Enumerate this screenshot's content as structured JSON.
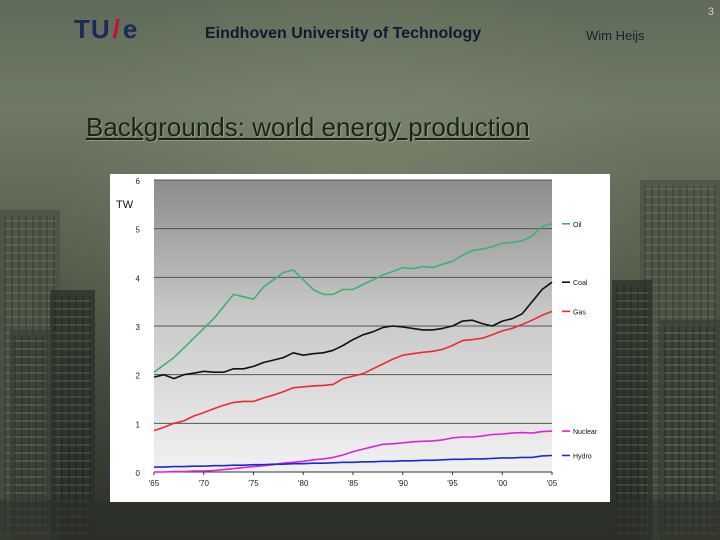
{
  "header": {
    "logo_tu": "TU",
    "logo_slash": "/",
    "logo_e": "e",
    "university": "Eindhoven University of Technology",
    "author": "Wim Heijs",
    "page_number": "3"
  },
  "slide": {
    "title": "Backgrounds: world energy production"
  },
  "colors": {
    "oil": "#3cb371",
    "coal": "#111111",
    "gas": "#ee2b2b",
    "nuclear": "#e020e0",
    "hydro": "#1a2bd6"
  },
  "chart_data": {
    "type": "line",
    "title": "",
    "ylabel": "TW",
    "xlabel": "",
    "ylim": [
      0,
      6
    ],
    "xlim": [
      1965,
      2005
    ],
    "y_ticks": [
      0,
      1,
      2,
      3,
      4,
      5,
      6
    ],
    "y_tick_labels": [
      "0",
      "1",
      "2",
      "3",
      "4",
      "5",
      "6"
    ],
    "x_ticks": [
      1965,
      1970,
      1975,
      1980,
      1985,
      1990,
      1995,
      2000,
      2005
    ],
    "x_tick_labels": [
      "'65",
      "'70",
      "'75",
      "'80",
      "'85",
      "'90",
      "'95",
      "'00",
      "'05"
    ],
    "x": [
      1965,
      1966,
      1967,
      1968,
      1969,
      1970,
      1971,
      1972,
      1973,
      1974,
      1975,
      1976,
      1977,
      1978,
      1979,
      1980,
      1981,
      1982,
      1983,
      1984,
      1985,
      1986,
      1987,
      1988,
      1989,
      1990,
      1991,
      1992,
      1993,
      1994,
      1995,
      1996,
      1997,
      1998,
      1999,
      2000,
      2001,
      2002,
      2003,
      2004,
      2005
    ],
    "series": [
      {
        "name": "Oil",
        "key": "oil",
        "values": [
          2.05,
          2.2,
          2.35,
          2.55,
          2.75,
          2.95,
          3.15,
          3.4,
          3.65,
          3.6,
          3.55,
          3.8,
          3.95,
          4.1,
          4.15,
          3.95,
          3.75,
          3.65,
          3.65,
          3.75,
          3.75,
          3.85,
          3.95,
          4.05,
          4.12,
          4.2,
          4.18,
          4.22,
          4.2,
          4.27,
          4.33,
          4.45,
          4.55,
          4.58,
          4.63,
          4.7,
          4.72,
          4.75,
          4.85,
          5.05,
          5.1
        ]
      },
      {
        "name": "Coal",
        "key": "coal",
        "values": [
          1.95,
          2.0,
          1.92,
          2.0,
          2.03,
          2.07,
          2.05,
          2.05,
          2.12,
          2.12,
          2.17,
          2.25,
          2.3,
          2.35,
          2.45,
          2.4,
          2.43,
          2.45,
          2.5,
          2.6,
          2.72,
          2.82,
          2.88,
          2.97,
          3.0,
          2.98,
          2.95,
          2.92,
          2.92,
          2.95,
          3.0,
          3.1,
          3.12,
          3.05,
          3.0,
          3.1,
          3.15,
          3.25,
          3.5,
          3.75,
          3.9
        ]
      },
      {
        "name": "Gas",
        "key": "gas",
        "values": [
          0.85,
          0.92,
          1.0,
          1.05,
          1.15,
          1.22,
          1.3,
          1.37,
          1.43,
          1.45,
          1.45,
          1.52,
          1.58,
          1.65,
          1.73,
          1.75,
          1.77,
          1.78,
          1.8,
          1.92,
          1.97,
          2.02,
          2.12,
          2.22,
          2.32,
          2.4,
          2.43,
          2.46,
          2.48,
          2.52,
          2.6,
          2.7,
          2.72,
          2.75,
          2.82,
          2.9,
          2.95,
          3.03,
          3.12,
          3.22,
          3.3
        ]
      },
      {
        "name": "Nuclear",
        "key": "nuclear",
        "values": [
          0.0,
          0.0,
          0.01,
          0.01,
          0.02,
          0.02,
          0.03,
          0.05,
          0.07,
          0.09,
          0.11,
          0.13,
          0.15,
          0.18,
          0.2,
          0.22,
          0.25,
          0.27,
          0.3,
          0.35,
          0.42,
          0.47,
          0.52,
          0.57,
          0.58,
          0.6,
          0.62,
          0.63,
          0.64,
          0.66,
          0.7,
          0.72,
          0.72,
          0.74,
          0.77,
          0.78,
          0.8,
          0.81,
          0.8,
          0.83,
          0.84
        ]
      },
      {
        "name": "Hydro",
        "key": "hydro",
        "values": [
          0.1,
          0.1,
          0.11,
          0.11,
          0.12,
          0.12,
          0.13,
          0.13,
          0.14,
          0.14,
          0.15,
          0.15,
          0.16,
          0.16,
          0.17,
          0.17,
          0.18,
          0.18,
          0.19,
          0.2,
          0.2,
          0.21,
          0.21,
          0.22,
          0.22,
          0.23,
          0.23,
          0.24,
          0.24,
          0.25,
          0.26,
          0.26,
          0.27,
          0.27,
          0.28,
          0.29,
          0.29,
          0.3,
          0.3,
          0.33,
          0.34
        ]
      }
    ]
  }
}
